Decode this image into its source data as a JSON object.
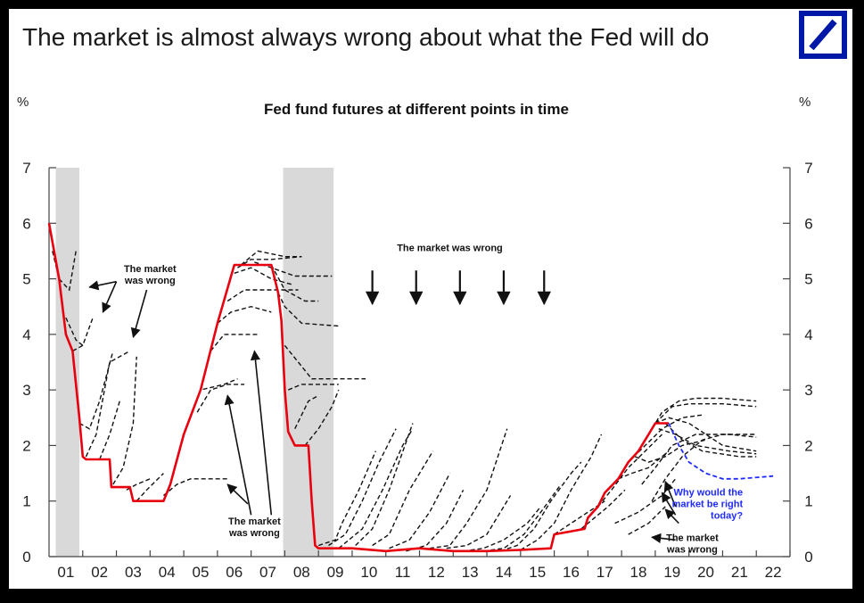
{
  "header": {
    "title": "The market is almost always wrong about what the Fed will do",
    "logo_icon": "deutsche-bank-logo-icon"
  },
  "colors": {
    "actual": "#e8000f",
    "futures": "#111111",
    "current_futures": "#1f2bff",
    "recession": "#d9d9d9",
    "logo": "#0018a8"
  },
  "chart_data": {
    "type": "line",
    "title": "Fed fund futures at different points in time",
    "ylabel_left": "%",
    "ylabel_right": "%",
    "xlim": [
      2001,
      2023
    ],
    "ylim": [
      0,
      7
    ],
    "x_ticks": [
      "01",
      "02",
      "03",
      "04",
      "05",
      "06",
      "07",
      "08",
      "09",
      "10",
      "11",
      "12",
      "13",
      "14",
      "15",
      "16",
      "17",
      "18",
      "19",
      "20",
      "21",
      "22"
    ],
    "y_ticks": [
      "0",
      "1",
      "2",
      "3",
      "4",
      "5",
      "6",
      "7"
    ],
    "recessions": [
      [
        2001.2,
        2001.9
      ],
      [
        2007.95,
        2009.45
      ]
    ],
    "actual_rate": [
      [
        2001.0,
        6.0
      ],
      [
        2001.3,
        5.0
      ],
      [
        2001.5,
        4.0
      ],
      [
        2001.7,
        3.7
      ],
      [
        2001.9,
        2.5
      ],
      [
        2002.0,
        1.8
      ],
      [
        2002.1,
        1.75
      ],
      [
        2002.8,
        1.75
      ],
      [
        2002.85,
        1.25
      ],
      [
        2003.4,
        1.25
      ],
      [
        2003.5,
        1.0
      ],
      [
        2004.4,
        1.0
      ],
      [
        2004.6,
        1.3
      ],
      [
        2005.0,
        2.2
      ],
      [
        2005.5,
        3.0
      ],
      [
        2006.0,
        4.2
      ],
      [
        2006.5,
        5.25
      ],
      [
        2007.6,
        5.25
      ],
      [
        2007.8,
        4.75
      ],
      [
        2007.9,
        4.25
      ],
      [
        2008.0,
        3.0
      ],
      [
        2008.1,
        2.25
      ],
      [
        2008.3,
        2.0
      ],
      [
        2008.7,
        2.0
      ],
      [
        2008.8,
        1.0
      ],
      [
        2008.9,
        0.2
      ],
      [
        2009.0,
        0.15
      ],
      [
        2010.0,
        0.15
      ],
      [
        2011.0,
        0.1
      ],
      [
        2012.0,
        0.15
      ],
      [
        2013.0,
        0.1
      ],
      [
        2014.0,
        0.1
      ],
      [
        2015.0,
        0.12
      ],
      [
        2015.9,
        0.15
      ],
      [
        2016.0,
        0.4
      ],
      [
        2016.9,
        0.5
      ],
      [
        2017.0,
        0.7
      ],
      [
        2017.3,
        0.9
      ],
      [
        2017.5,
        1.15
      ],
      [
        2017.9,
        1.4
      ],
      [
        2018.2,
        1.7
      ],
      [
        2018.5,
        1.9
      ],
      [
        2018.8,
        2.2
      ],
      [
        2019.0,
        2.4
      ],
      [
        2019.4,
        2.4
      ]
    ],
    "futures_curves": [
      [
        [
          2001.1,
          5.5
        ],
        [
          2001.3,
          5.0
        ],
        [
          2001.6,
          4.8
        ],
        [
          2001.8,
          5.5
        ]
      ],
      [
        [
          2001.5,
          4.3
        ],
        [
          2001.8,
          3.9
        ],
        [
          2002.0,
          3.8
        ]
      ],
      [
        [
          2001.7,
          3.7
        ],
        [
          2002.0,
          3.8
        ],
        [
          2002.3,
          4.3
        ]
      ],
      [
        [
          2001.9,
          2.4
        ],
        [
          2002.2,
          2.3
        ],
        [
          2002.5,
          2.8
        ],
        [
          2002.9,
          3.7
        ]
      ],
      [
        [
          2002.1,
          1.8
        ],
        [
          2002.4,
          2.2
        ],
        [
          2002.8,
          3.5
        ],
        [
          2003.4,
          3.7
        ]
      ],
      [
        [
          2002.5,
          1.75
        ],
        [
          2002.8,
          2.2
        ],
        [
          2003.1,
          2.8
        ]
      ],
      [
        [
          2002.9,
          1.3
        ],
        [
          2003.2,
          1.6
        ],
        [
          2003.5,
          2.4
        ],
        [
          2003.6,
          3.6
        ]
      ],
      [
        [
          2003.3,
          1.2
        ],
        [
          2003.6,
          1.3
        ],
        [
          2004.0,
          1.4
        ]
      ],
      [
        [
          2003.6,
          1.0
        ],
        [
          2003.9,
          1.2
        ],
        [
          2004.4,
          1.5
        ]
      ],
      [
        [
          2004.4,
          1.1
        ],
        [
          2004.8,
          1.3
        ],
        [
          2005.2,
          1.4
        ],
        [
          2006.0,
          1.4
        ],
        [
          2006.3,
          1.4
        ]
      ],
      [
        [
          2005.0,
          2.2
        ],
        [
          2005.5,
          3.0
        ],
        [
          2006.2,
          3.1
        ],
        [
          2006.6,
          3.2
        ]
      ],
      [
        [
          2005.4,
          2.6
        ],
        [
          2005.8,
          3.0
        ],
        [
          2006.3,
          3.1
        ],
        [
          2006.8,
          3.1
        ]
      ],
      [
        [
          2005.8,
          3.7
        ],
        [
          2006.2,
          4.0
        ],
        [
          2006.8,
          4.0
        ],
        [
          2007.2,
          4.0
        ]
      ],
      [
        [
          2006.0,
          4.2
        ],
        [
          2006.4,
          4.4
        ],
        [
          2007.0,
          4.5
        ],
        [
          2007.6,
          4.4
        ]
      ],
      [
        [
          2006.3,
          4.6
        ],
        [
          2006.8,
          4.8
        ],
        [
          2007.5,
          4.8
        ],
        [
          2008.4,
          4.8
        ]
      ],
      [
        [
          2006.5,
          5.1
        ],
        [
          2007.0,
          5.2
        ],
        [
          2007.6,
          5.0
        ],
        [
          2008.2,
          4.9
        ]
      ],
      [
        [
          2006.6,
          5.2
        ],
        [
          2007.0,
          5.35
        ],
        [
          2007.6,
          5.35
        ],
        [
          2008.5,
          5.4
        ]
      ],
      [
        [
          2006.7,
          5.25
        ],
        [
          2007.2,
          5.5
        ],
        [
          2008.0,
          5.4
        ],
        [
          2008.5,
          5.4
        ]
      ],
      [
        [
          2007.1,
          5.3
        ],
        [
          2007.6,
          5.2
        ],
        [
          2008.3,
          5.05
        ],
        [
          2009.4,
          5.05
        ]
      ],
      [
        [
          2007.6,
          5.25
        ],
        [
          2008.0,
          4.8
        ],
        [
          2008.6,
          4.6
        ],
        [
          2009.0,
          4.6
        ]
      ],
      [
        [
          2007.8,
          4.75
        ],
        [
          2008.0,
          4.5
        ],
        [
          2008.5,
          4.2
        ],
        [
          2009.6,
          4.15
        ]
      ],
      [
        [
          2008.0,
          3.8
        ],
        [
          2008.4,
          3.5
        ],
        [
          2008.8,
          3.2
        ],
        [
          2010.4,
          3.2
        ]
      ],
      [
        [
          2008.1,
          3.0
        ],
        [
          2008.5,
          3.1
        ],
        [
          2009.2,
          3.1
        ],
        [
          2009.6,
          3.1
        ]
      ],
      [
        [
          2008.3,
          2.3
        ],
        [
          2008.7,
          2.8
        ],
        [
          2009.0,
          2.9
        ]
      ],
      [
        [
          2008.6,
          2.0
        ],
        [
          2009.0,
          2.3
        ],
        [
          2009.4,
          2.7
        ],
        [
          2009.6,
          3.0
        ]
      ],
      [
        [
          2009.0,
          0.2
        ],
        [
          2009.5,
          0.3
        ],
        [
          2009.7,
          0.6
        ],
        [
          2010.2,
          1.2
        ],
        [
          2010.7,
          1.9
        ]
      ],
      [
        [
          2009.3,
          0.2
        ],
        [
          2009.8,
          0.4
        ],
        [
          2010.3,
          1.0
        ],
        [
          2010.8,
          1.7
        ],
        [
          2011.3,
          2.3
        ]
      ],
      [
        [
          2009.6,
          0.15
        ],
        [
          2010.3,
          0.5
        ],
        [
          2010.9,
          1.2
        ],
        [
          2011.5,
          2.0
        ],
        [
          2011.8,
          2.3
        ]
      ],
      [
        [
          2010.1,
          0.2
        ],
        [
          2010.6,
          0.5
        ],
        [
          2011.1,
          1.2
        ],
        [
          2011.8,
          2.4
        ]
      ],
      [
        [
          2010.6,
          0.2
        ],
        [
          2011.1,
          0.4
        ],
        [
          2011.7,
          1.2
        ],
        [
          2012.4,
          1.9
        ]
      ],
      [
        [
          2011.1,
          0.15
        ],
        [
          2011.7,
          0.3
        ],
        [
          2012.3,
          0.8
        ],
        [
          2012.9,
          1.5
        ]
      ],
      [
        [
          2011.6,
          0.1
        ],
        [
          2012.2,
          0.2
        ],
        [
          2012.8,
          0.6
        ],
        [
          2013.3,
          1.2
        ]
      ],
      [
        [
          2012.3,
          0.15
        ],
        [
          2012.9,
          0.2
        ],
        [
          2013.4,
          0.6
        ],
        [
          2014.0,
          1.2
        ],
        [
          2014.6,
          2.3
        ]
      ],
      [
        [
          2012.8,
          0.15
        ],
        [
          2013.4,
          0.2
        ],
        [
          2014.0,
          0.4
        ],
        [
          2014.7,
          1.1
        ]
      ],
      [
        [
          2013.3,
          0.1
        ],
        [
          2013.9,
          0.15
        ],
        [
          2014.5,
          0.3
        ],
        [
          2015.2,
          0.6
        ],
        [
          2015.6,
          0.9
        ]
      ],
      [
        [
          2013.9,
          0.1
        ],
        [
          2014.5,
          0.15
        ],
        [
          2015.1,
          0.4
        ],
        [
          2015.6,
          0.8
        ],
        [
          2016.2,
          1.3
        ]
      ],
      [
        [
          2014.4,
          0.1
        ],
        [
          2014.9,
          0.2
        ],
        [
          2015.4,
          0.5
        ],
        [
          2015.9,
          1.0
        ],
        [
          2016.5,
          1.5
        ],
        [
          2016.8,
          1.7
        ]
      ],
      [
        [
          2015.0,
          0.12
        ],
        [
          2015.5,
          0.3
        ],
        [
          2016.0,
          0.6
        ],
        [
          2016.5,
          1.2
        ],
        [
          2017.1,
          1.8
        ],
        [
          2017.4,
          2.2
        ]
      ],
      [
        [
          2016.0,
          0.4
        ],
        [
          2016.5,
          0.6
        ],
        [
          2017.0,
          0.8
        ],
        [
          2017.5,
          1.0
        ]
      ],
      [
        [
          2016.8,
          0.5
        ],
        [
          2017.2,
          0.7
        ],
        [
          2017.6,
          0.9
        ],
        [
          2018.1,
          1.2
        ]
      ],
      [
        [
          2017.3,
          0.9
        ],
        [
          2017.7,
          1.2
        ],
        [
          2018.2,
          1.6
        ],
        [
          2018.7,
          1.9
        ],
        [
          2019.2,
          2.2
        ]
      ],
      [
        [
          2017.9,
          1.4
        ],
        [
          2018.3,
          1.5
        ],
        [
          2018.8,
          1.6
        ],
        [
          2019.4,
          1.9
        ]
      ],
      [
        [
          2018.2,
          1.7
        ],
        [
          2018.7,
          2.0
        ],
        [
          2019.2,
          2.3
        ],
        [
          2019.8,
          2.5
        ],
        [
          2020.4,
          2.55
        ]
      ],
      [
        [
          2018.4,
          1.8
        ],
        [
          2018.8,
          1.7
        ],
        [
          2019.3,
          1.8
        ],
        [
          2019.8,
          2.0
        ],
        [
          2020.5,
          2.1
        ]
      ],
      [
        [
          2018.6,
          1.3
        ],
        [
          2019.0,
          1.6
        ],
        [
          2019.5,
          2.0
        ],
        [
          2020.2,
          2.2
        ],
        [
          2021.2,
          2.2
        ],
        [
          2022.0,
          2.15
        ]
      ],
      [
        [
          2018.9,
          1.0
        ],
        [
          2019.3,
          1.4
        ],
        [
          2019.8,
          1.8
        ],
        [
          2020.4,
          2.1
        ],
        [
          2021.0,
          2.2
        ],
        [
          2022.0,
          2.2
        ]
      ],
      [
        [
          2018.8,
          2.2
        ],
        [
          2019.2,
          2.6
        ],
        [
          2019.7,
          2.8
        ],
        [
          2020.2,
          2.85
        ],
        [
          2021.0,
          2.85
        ],
        [
          2022.0,
          2.8
        ]
      ],
      [
        [
          2019.0,
          2.4
        ],
        [
          2019.5,
          2.7
        ],
        [
          2020.0,
          2.75
        ],
        [
          2021.0,
          2.75
        ],
        [
          2022.0,
          2.7
        ]
      ],
      [
        [
          2019.0,
          2.4
        ],
        [
          2019.4,
          2.5
        ],
        [
          2020.0,
          2.4
        ],
        [
          2021.0,
          2.0
        ],
        [
          2022.0,
          1.9
        ]
      ],
      [
        [
          2019.1,
          2.3
        ],
        [
          2019.6,
          2.2
        ],
        [
          2020.2,
          2.0
        ],
        [
          2021.2,
          1.9
        ],
        [
          2022.0,
          1.85
        ]
      ],
      [
        [
          2019.3,
          2.4
        ],
        [
          2019.8,
          2.1
        ],
        [
          2020.4,
          1.9
        ],
        [
          2021.5,
          1.8
        ],
        [
          2022.0,
          1.8
        ]
      ],
      [
        [
          2017.8,
          0.6
        ],
        [
          2018.5,
          0.8
        ],
        [
          2019.2,
          1.1
        ],
        [
          2019.6,
          1.4
        ]
      ],
      [
        [
          2018.2,
          0.4
        ],
        [
          2018.8,
          0.6
        ],
        [
          2019.3,
          0.9
        ]
      ]
    ],
    "current_futures": [
      [
        2019.4,
        2.4
      ],
      [
        2019.7,
        2.0
      ],
      [
        2020.0,
        1.7
      ],
      [
        2020.5,
        1.5
      ],
      [
        2021.0,
        1.4
      ],
      [
        2021.5,
        1.4
      ],
      [
        2022.5,
        1.45
      ]
    ],
    "arrows_down_x": [
      2010.6,
      2011.9,
      2013.2,
      2014.5,
      2015.7
    ],
    "annotations": [
      {
        "lines": [
          "The market",
          "was wrong"
        ],
        "x": 2004.0,
        "y": 5.12
      },
      {
        "lines": [
          "The market was wrong"
        ],
        "x": 2012.9,
        "y": 5.5
      },
      {
        "lines": [
          "The market",
          "was wrong"
        ],
        "x": 2007.1,
        "y": 0.58
      },
      {
        "lines": [
          "The market",
          "was wrong"
        ],
        "x": 2020.1,
        "y": 0.28
      },
      {
        "lines": [
          "Why would the",
          "market be right",
          "today?"
        ],
        "x": 2021.6,
        "y": 1.1,
        "color": "#1f2bff",
        "anchor": "end"
      }
    ],
    "pointer_arrows": [
      [
        2003.0,
        4.95,
        2002.2,
        4.85
      ],
      [
        2003.0,
        4.95,
        2002.6,
        4.4
      ],
      [
        2003.9,
        4.8,
        2003.5,
        3.95
      ],
      [
        2006.9,
        0.95,
        2006.3,
        1.3
      ],
      [
        2007.0,
        0.75,
        2006.3,
        2.9
      ],
      [
        2007.6,
        0.75,
        2007.1,
        3.7
      ],
      [
        2019.6,
        0.3,
        2018.9,
        0.35
      ],
      [
        2019.7,
        0.6,
        2019.3,
        0.85
      ],
      [
        2019.6,
        0.75,
        2019.2,
        1.15
      ],
      [
        2019.6,
        0.9,
        2019.3,
        1.35
      ]
    ]
  }
}
